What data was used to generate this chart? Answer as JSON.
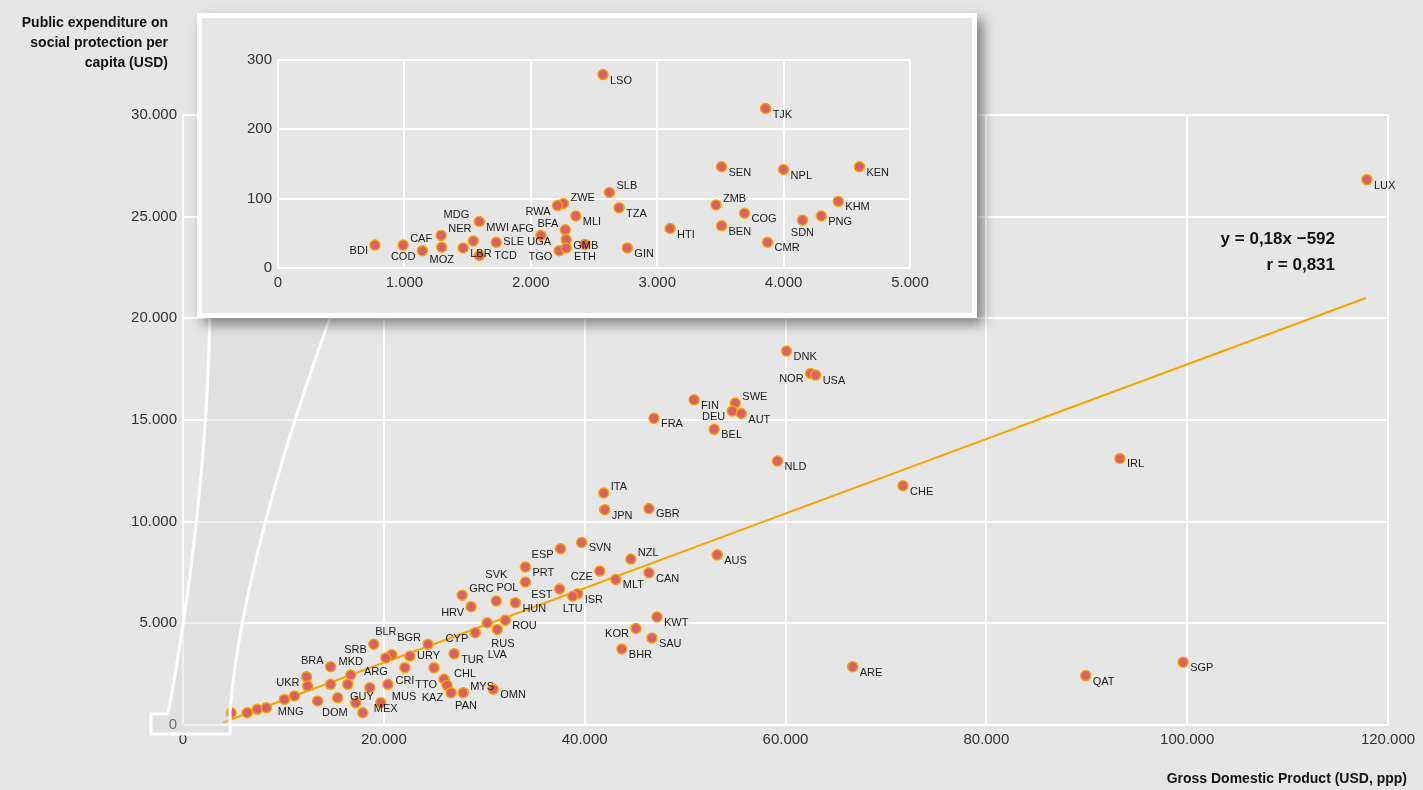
{
  "chart_data": [
    {
      "type": "scatter",
      "xlabel": "Gross Domestic Product (USD, ppp)",
      "ylabel": "Public expenditure on social protection per capita (USD)",
      "annotations": [
        "y = 0,18x −592",
        "r = 0,831"
      ],
      "xlim": [
        0,
        120000
      ],
      "ylim": [
        0,
        30000
      ],
      "xticks": [
        0,
        {
          "value": 20000,
          "label": "20.000"
        },
        {
          "value": 40000,
          "label": "40.000"
        },
        {
          "value": 60000,
          "label": "60.000"
        },
        {
          "value": 80000,
          "label": "80.000"
        },
        {
          "value": 100000,
          "label": "100.000"
        },
        {
          "value": 120000,
          "label": "120.000"
        }
      ],
      "yticks": [
        0,
        {
          "value": 5000,
          "label": "5.000"
        },
        {
          "value": 10000,
          "label": "10.000"
        },
        {
          "value": 15000,
          "label": "15.000"
        },
        {
          "value": 20000,
          "label": "20.000"
        },
        {
          "value": 25000,
          "label": "25.000"
        },
        {
          "value": 30000,
          "label": "30.000"
        }
      ],
      "grid": true,
      "series": [
        {
          "type": "scatter",
          "color": "#d95f6b",
          "marker": "circle",
          "x": [
            60100,
            62500,
            63000,
            50900,
            55000,
            54700,
            55600,
            46900,
            52900,
            59200,
            41900,
            42000,
            46400,
            39700,
            37600,
            34100,
            44600,
            41500,
            53200,
            46400,
            43100,
            34100,
            37500,
            27800,
            39300,
            38800,
            47200,
            45100,
            46700,
            43700,
            66700,
            117900,
            71700,
            93300,
            99600,
            89900,
            33100,
            31200,
            28700,
            30300,
            32100,
            31300,
            29100,
            24400,
            27000,
            19000,
            20800,
            20200,
            22600,
            22100,
            25000,
            26000,
            26300,
            26700,
            27900,
            30900,
            14700,
            12300,
            12400,
            16700,
            20400,
            18600,
            17900,
            19700,
            4800,
            6400,
            7400,
            8300,
            10100,
            11100,
            13400,
            14700,
            15400,
            16400,
            17200
          ],
          "values": [
            18390,
            17290,
            17210,
            15990,
            15830,
            15440,
            15320,
            15080,
            14540,
            12980,
            11410,
            10590,
            10650,
            8980,
            8670,
            7770,
            8160,
            7570,
            8370,
            7490,
            7160,
            7030,
            6690,
            6380,
            6460,
            6330,
            5310,
            4750,
            4280,
            3740,
            2870,
            26820,
            11770,
            13110,
            3090,
            2430,
            6010,
            6100,
            5820,
            5030,
            5150,
            4700,
            4540,
            3970,
            3510,
            3970,
            3450,
            3300,
            3390,
            2820,
            2820,
            2250,
            1950,
            1590,
            1590,
            1760,
            2870,
            2370,
            1920,
            2460,
            2000,
            1830,
            600,
            1100,
            600,
            600,
            770,
            850,
            1260,
            1430,
            1180,
            2000,
            1340,
            2000,
            1100
          ],
          "value_labels": [
            "DNK",
            "NOR",
            "USA",
            "FIN",
            "SWE",
            "DEU",
            "AUT",
            "FRA",
            "BEL",
            "NLD",
            "ITA",
            "JPN",
            "GBR",
            "SVN",
            "ESP",
            "PRT",
            "NZL",
            "CZE",
            "AUS",
            "CAN",
            "MLT",
            "POL",
            "EST",
            "GRC",
            "ISR",
            "LTU",
            "KWT",
            "KOR",
            "SAU",
            "BHR",
            "ARE",
            "LUX",
            "CHE",
            "IRL",
            "SGP",
            "QAT",
            "HUN",
            "SVK",
            "HRV",
            "RUS",
            "ROU",
            "LVA",
            "CYP",
            "BGR",
            "TUR",
            "SRB",
            "ARG",
            "BLR",
            "URY",
            "CRI",
            "CHL",
            "TTO",
            "KAZ",
            "PAN",
            "MYS",
            "OMN",
            "BRA",
            "UKR",
            "MNG",
            "MKD",
            "MUS",
            "MEX",
            "DOM",
            "GUY",
            null,
            null,
            null,
            null,
            null,
            null,
            null,
            null,
            null,
            null,
            null
          ]
        },
        {
          "type": "line",
          "color": "#f5a500",
          "marker": "none",
          "x": [
            4000,
            117800
          ],
          "values": [
            130,
            21000
          ]
        }
      ]
    },
    {
      "type": "scatter",
      "xlim": [
        0,
        5000
      ],
      "ylim": [
        0,
        300
      ],
      "xticks": [
        0,
        {
          "value": 1000,
          "label": "1.000"
        },
        {
          "value": 2000,
          "label": "2.000"
        },
        {
          "value": 3000,
          "label": "3.000"
        },
        {
          "value": 4000,
          "label": "4.000"
        },
        {
          "value": 5000,
          "label": "5.000"
        }
      ],
      "yticks": [
        0,
        100,
        200,
        300
      ],
      "grid": true,
      "series": [
        {
          "type": "scatter",
          "color": "#d95f6b",
          "marker": "circle",
          "x": [
            767,
            990,
            1142,
            1291,
            1295,
            1545,
            1465,
            1593,
            1593,
            1727,
            2080,
            2225,
            2258,
            2211,
            2356,
            2273,
            2280,
            2280,
            2429,
            2622,
            2571,
            2698,
            2764,
            3102,
            3465,
            3509,
            3509,
            3691,
            3858,
            3873,
            4000,
            4149,
            4298,
            4433,
            4600
          ],
          "values": [
            33,
            33,
            25,
            47,
            30,
            39,
            29,
            18,
            67,
            37,
            47,
            25,
            93,
            90,
            75,
            55,
            41,
            29,
            34,
            109,
            279,
            87,
            29,
            57,
            91,
            146,
            61,
            79,
            230,
            37,
            142,
            69,
            75,
            96,
            146
          ],
          "value_labels": [
            "BDI",
            "CAF",
            "COD",
            "NER",
            "MOZ",
            "MDG",
            "LBR",
            "TCD",
            "MWI",
            "SLE",
            "AFG",
            "TGO",
            "ZWE",
            "RWA",
            "MLI",
            "BFA",
            "GMB",
            "UGA",
            "ETH",
            "SLB",
            "LSO",
            "TZA",
            "GIN",
            "HTI",
            "ZMB",
            "SEN",
            "BEN",
            "COG",
            "TJK",
            "CMR",
            "NPL",
            "SDN",
            "PNG",
            "KHM",
            "KEN"
          ]
        }
      ]
    }
  ]
}
